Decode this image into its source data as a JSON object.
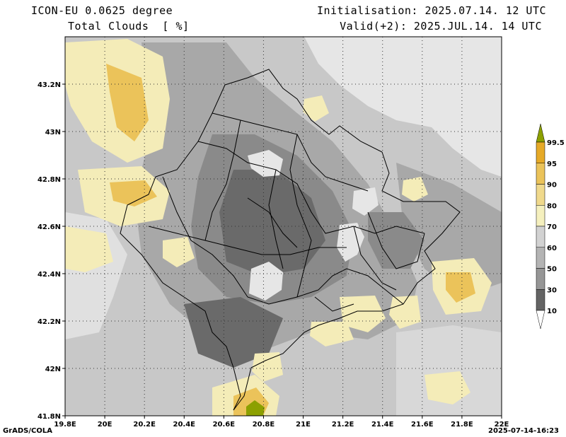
{
  "header": {
    "model": "ICON-EU 0.0625 degree",
    "variable": "Total Clouds  [ %]",
    "initialisation": "Initialisation: 2025.07.14. 12 UTC",
    "valid": "Valid(+2): 2025.JUL.14. 14 UTC"
  },
  "map": {
    "lon_range": [
      19.8,
      22.0
    ],
    "lat_range": [
      41.8,
      43.4
    ],
    "lon_ticks": [
      "19.8E",
      "20E",
      "20.2E",
      "20.4E",
      "20.6E",
      "20.8E",
      "21E",
      "21.2E",
      "21.4E",
      "21.6E",
      "21.8E",
      "22E"
    ],
    "lat_ticks": [
      "41.8N",
      "42N",
      "42.2N",
      "42.4N",
      "42.6N",
      "42.8N",
      "43N",
      "43.2N"
    ],
    "grid": "dotted"
  },
  "colorbar": {
    "labels": [
      "99.5",
      "95",
      "90",
      "80",
      "70",
      "60",
      "50",
      "30",
      "10"
    ],
    "colors": [
      "#8ca000",
      "#e6aa28",
      "#ebc35a",
      "#f0d98c",
      "#f5f0be",
      "#d2d2d2",
      "#b4b4b4",
      "#969696",
      "#646464",
      "#ffffff"
    ]
  },
  "footer": {
    "credit": "GrADS/COLA",
    "timestamp": "2025-07-14-16:23"
  },
  "palette": {
    "c_white": "#e6e6e6",
    "c_light": "#c8c8c8",
    "c_mid": "#a8a8a8",
    "c_dark": "#8a8a8a",
    "c_darkest": "#6a6a6a",
    "c_yellow": "#f4ecb8",
    "c_orange": "#ebc35a",
    "c_olive": "#8ca000"
  }
}
